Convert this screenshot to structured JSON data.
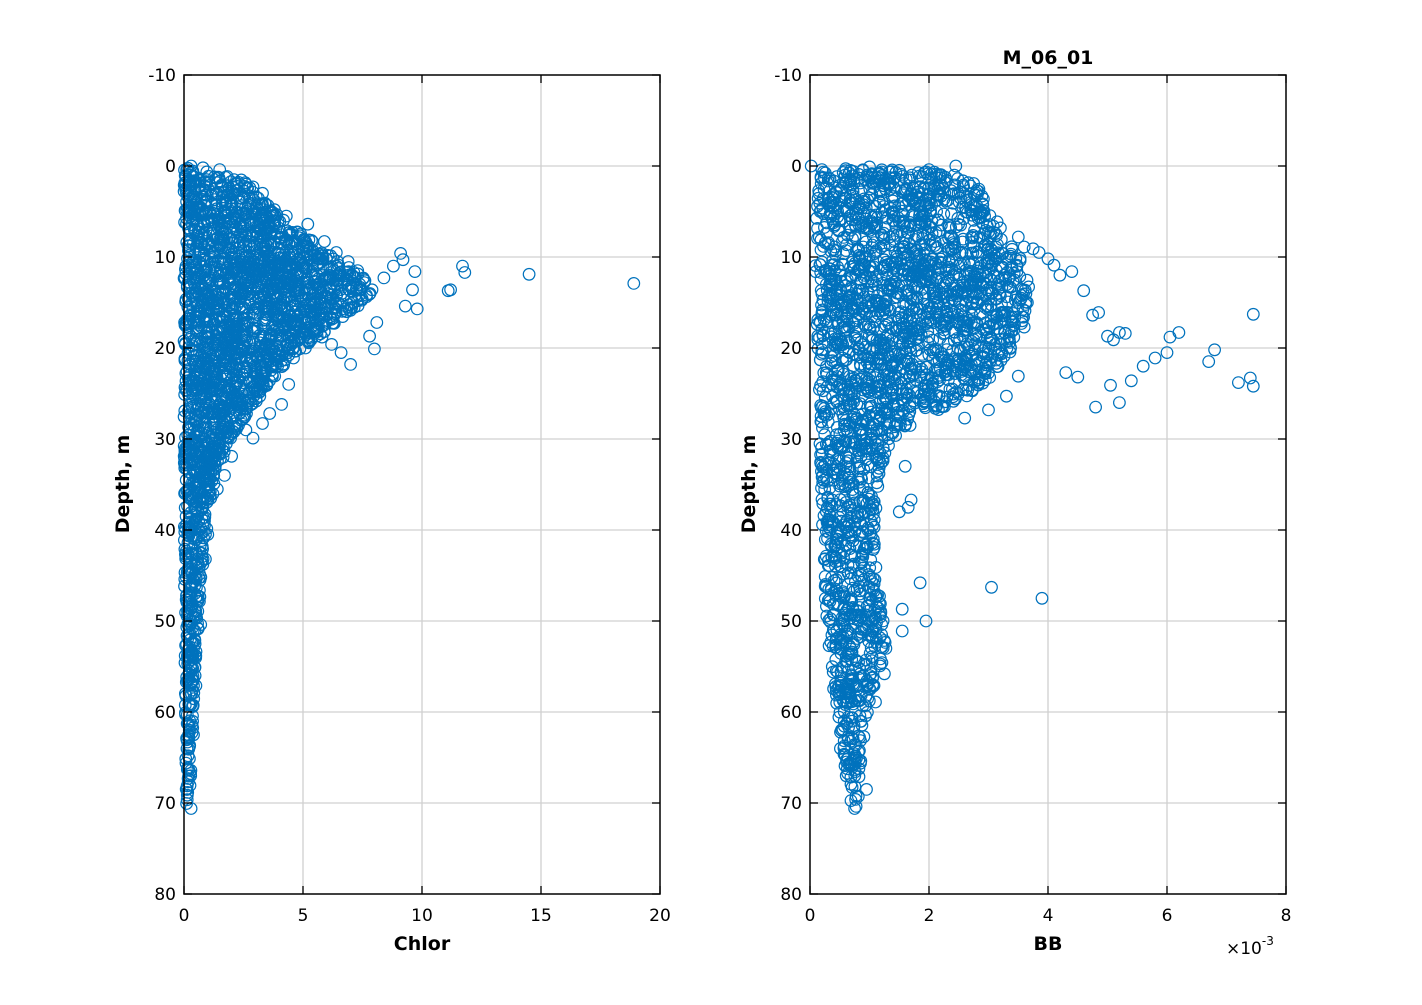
{
  "figure": {
    "background": "#ffffff",
    "marker_color": "#0072bd",
    "grid_color": "#d0d0d0"
  },
  "chart_data": [
    {
      "type": "scatter",
      "marker": "circle-open",
      "title": "",
      "xlabel": "Chlor",
      "ylabel": "Depth, m",
      "xlim": [
        0,
        20
      ],
      "ylim": [
        -10,
        80
      ],
      "y_reversed": true,
      "grid": true,
      "xticks": [
        0,
        5,
        10,
        15,
        20
      ],
      "xtick_labels": [
        "0",
        "5",
        "10",
        "15",
        "20"
      ],
      "yticks": [
        -10,
        0,
        10,
        20,
        30,
        40,
        50,
        60,
        70,
        80
      ],
      "ytick_labels": [
        "-10",
        "0",
        "10",
        "20",
        "30",
        "40",
        "50",
        "60",
        "70",
        "80"
      ],
      "x_multiplier": "",
      "bulk_envelope": [
        [
          0.0,
          0.1
        ],
        [
          2.5,
          1.5
        ],
        [
          2.9,
          2.5
        ],
        [
          3.6,
          4.5
        ],
        [
          4.6,
          6.5
        ],
        [
          5.5,
          8.5
        ],
        [
          6.5,
          10.5
        ],
        [
          7.5,
          12.0
        ],
        [
          8.0,
          13.5
        ],
        [
          7.5,
          15.0
        ],
        [
          6.5,
          17.0
        ],
        [
          5.5,
          19.0
        ],
        [
          4.5,
          21.0
        ],
        [
          3.7,
          23.5
        ],
        [
          3.0,
          26.0
        ],
        [
          2.3,
          28.5
        ],
        [
          1.8,
          31.0
        ],
        [
          1.4,
          34.0
        ],
        [
          1.1,
          37.5
        ],
        [
          0.9,
          41.0
        ],
        [
          0.75,
          45.0
        ],
        [
          0.65,
          49.0
        ],
        [
          0.55,
          53.0
        ],
        [
          0.45,
          57.0
        ],
        [
          0.38,
          61.0
        ],
        [
          0.3,
          66.0
        ],
        [
          0.22,
          70.5
        ],
        [
          0.1,
          70.6
        ],
        [
          0.05,
          60.0
        ],
        [
          0.0,
          40.0
        ]
      ],
      "x": [
        0.3,
        0.8,
        1.5,
        2.1,
        2.6,
        2.9,
        3.3,
        3.8,
        4.3,
        5.2,
        5.9,
        6.4,
        6.9,
        7.3,
        7.6,
        7.9,
        8.4,
        8.8,
        9.1,
        9.2,
        9.7,
        9.6,
        9.3,
        9.8,
        11.1,
        11.2,
        11.7,
        11.8,
        14.5,
        18.9,
        8.1,
        7.8,
        8.0,
        7.0,
        6.6,
        6.2,
        5.8,
        5.1,
        4.6,
        4.4,
        4.1,
        3.6,
        3.3,
        2.9,
        2.6,
        2.0,
        1.7,
        1.4,
        1.0,
        0.9,
        0.7,
        0.5,
        0.4,
        0.3
      ],
      "y": [
        0.0,
        0.2,
        0.4,
        1.5,
        2.0,
        2.3,
        3.0,
        4.8,
        5.5,
        6.4,
        8.3,
        9.5,
        10.5,
        11.5,
        12.6,
        13.6,
        12.3,
        11.0,
        9.6,
        10.3,
        11.6,
        13.6,
        15.4,
        15.7,
        13.7,
        13.6,
        11.0,
        11.7,
        11.9,
        12.9,
        17.2,
        18.7,
        20.1,
        21.8,
        20.5,
        19.6,
        18.8,
        20.0,
        21.1,
        24.0,
        26.2,
        27.2,
        28.3,
        29.9,
        29.0,
        31.9,
        34.0,
        35.5,
        40.5,
        43.2,
        50.4,
        57.1,
        62.5,
        70.6
      ]
    },
    {
      "type": "scatter",
      "marker": "circle-open",
      "title": "M_06_01",
      "xlabel": "BB",
      "ylabel": "Depth, m",
      "xlim": [
        0,
        8
      ],
      "ylim": [
        -10,
        80
      ],
      "y_reversed": true,
      "grid": true,
      "xticks": [
        0,
        2,
        4,
        6,
        8
      ],
      "xtick_labels": [
        "0",
        "2",
        "4",
        "6",
        "8"
      ],
      "yticks": [
        -10,
        0,
        10,
        20,
        30,
        40,
        50,
        60,
        70,
        80
      ],
      "ytick_labels": [
        "-10",
        "0",
        "10",
        "20",
        "30",
        "40",
        "50",
        "60",
        "70",
        "80"
      ],
      "x_multiplier": "×10",
      "x_multiplier_exponent": "-3",
      "bulk_envelope": [
        [
          0.2,
          0.3
        ],
        [
          2.5,
          0.5
        ],
        [
          2.8,
          2.0
        ],
        [
          3.0,
          4.5
        ],
        [
          3.3,
          7.5
        ],
        [
          3.6,
          10.5
        ],
        [
          3.7,
          13.5
        ],
        [
          3.6,
          17.0
        ],
        [
          3.4,
          20.5
        ],
        [
          3.0,
          23.5
        ],
        [
          2.6,
          25.5
        ],
        [
          2.1,
          27.0
        ],
        [
          1.7,
          28.5
        ],
        [
          1.4,
          30.0
        ],
        [
          1.2,
          33.0
        ],
        [
          1.1,
          38.0
        ],
        [
          1.1,
          43.0
        ],
        [
          1.2,
          48.0
        ],
        [
          1.3,
          52.5
        ],
        [
          1.15,
          56.0
        ],
        [
          1.0,
          59.0
        ],
        [
          0.9,
          63.0
        ],
        [
          0.85,
          67.0
        ],
        [
          0.8,
          70.6
        ],
        [
          0.65,
          70.6
        ],
        [
          0.55,
          66.0
        ],
        [
          0.45,
          61.0
        ],
        [
          0.35,
          56.0
        ],
        [
          0.27,
          50.0
        ],
        [
          0.22,
          42.0
        ],
        [
          0.18,
          34.0
        ],
        [
          0.14,
          25.0
        ],
        [
          0.1,
          15.0
        ],
        [
          0.08,
          5.0
        ]
      ],
      "x": [
        0.02,
        0.6,
        1.0,
        1.5,
        2.0,
        2.45,
        2.7,
        2.65,
        2.9,
        3.2,
        3.5,
        3.6,
        3.75,
        3.85,
        4.0,
        4.1,
        4.2,
        4.4,
        4.6,
        4.75,
        4.85,
        5.0,
        5.1,
        5.2,
        5.3,
        5.6,
        5.8,
        6.0,
        6.05,
        6.2,
        6.8,
        6.7,
        7.2,
        7.45,
        7.4,
        7.45,
        4.3,
        4.5,
        4.8,
        5.05,
        5.2,
        5.4,
        3.6,
        3.5,
        3.3,
        3.0,
        3.05,
        3.9,
        2.6,
        2.3,
        2.1,
        1.6,
        1.6,
        1.7,
        1.5,
        1.65,
        1.95,
        1.85,
        1.55,
        1.55,
        1.25,
        1.1,
        0.95,
        0.75
      ],
      "y": [
        0.0,
        0.3,
        0.1,
        1.5,
        0.4,
        0.0,
        2.2,
        5.1,
        6.3,
        6.8,
        7.8,
        8.9,
        9.1,
        9.5,
        10.2,
        10.9,
        12.0,
        11.6,
        13.7,
        16.4,
        16.1,
        18.7,
        19.1,
        18.3,
        18.4,
        22.0,
        21.1,
        20.5,
        18.8,
        18.3,
        20.2,
        21.5,
        23.8,
        16.3,
        23.3,
        24.2,
        22.7,
        23.2,
        26.5,
        24.1,
        26.0,
        23.6,
        17.7,
        23.1,
        25.3,
        26.8,
        46.3,
        47.5,
        27.7,
        25.4,
        22.5,
        28.5,
        33.0,
        36.7,
        38.0,
        37.5,
        50.0,
        45.8,
        48.7,
        51.1,
        55.8,
        58.9,
        68.5,
        70.6
      ]
    }
  ]
}
